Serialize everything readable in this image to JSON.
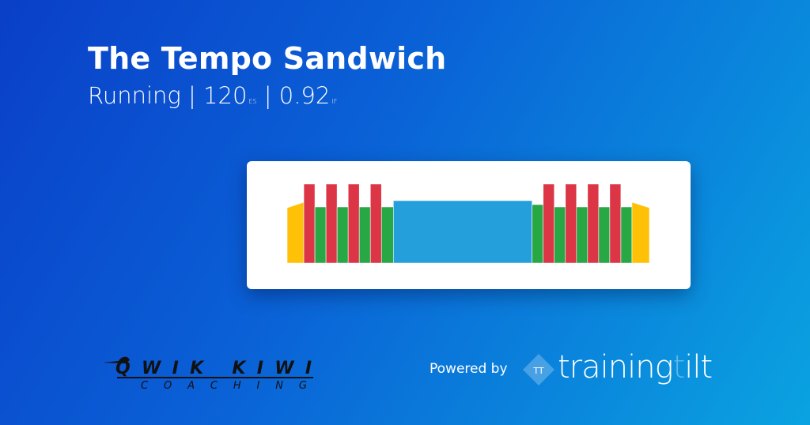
{
  "workout": {
    "title": "The Tempo Sandwich",
    "sport": "Running",
    "separator": "|",
    "es_value": "120",
    "es_unit": "ES",
    "if_value": "0.92",
    "if_unit": "IF"
  },
  "chart_data": {
    "type": "bar",
    "description_units": "relative duration and intensity",
    "colors": {
      "warmup": "#ffc107",
      "hard": "#dc3545",
      "easy": "#28a745",
      "tempo": "#259fdb"
    },
    "segments": [
      {
        "zone": "warmup",
        "duration": 21,
        "start": 70,
        "end": 77
      },
      {
        "zone": "hard",
        "duration": 14,
        "start": 100,
        "end": 100
      },
      {
        "zone": "easy",
        "duration": 14,
        "start": 71,
        "end": 71
      },
      {
        "zone": "hard",
        "duration": 14,
        "start": 100,
        "end": 100
      },
      {
        "zone": "easy",
        "duration": 14,
        "start": 71,
        "end": 71
      },
      {
        "zone": "hard",
        "duration": 14,
        "start": 100,
        "end": 100
      },
      {
        "zone": "easy",
        "duration": 14,
        "start": 71,
        "end": 71
      },
      {
        "zone": "hard",
        "duration": 14,
        "start": 100,
        "end": 100
      },
      {
        "zone": "easy",
        "duration": 15,
        "start": 71,
        "end": 71
      },
      {
        "zone": "tempo",
        "duration": 175,
        "start": 79,
        "end": 79
      },
      {
        "zone": "easy",
        "duration": 14,
        "start": 74,
        "end": 74
      },
      {
        "zone": "hard",
        "duration": 14,
        "start": 100,
        "end": 100
      },
      {
        "zone": "easy",
        "duration": 14,
        "start": 71,
        "end": 71
      },
      {
        "zone": "hard",
        "duration": 14,
        "start": 100,
        "end": 100
      },
      {
        "zone": "easy",
        "duration": 14,
        "start": 71,
        "end": 71
      },
      {
        "zone": "hard",
        "duration": 14,
        "start": 100,
        "end": 100
      },
      {
        "zone": "easy",
        "duration": 14,
        "start": 71,
        "end": 71
      },
      {
        "zone": "hard",
        "duration": 14,
        "start": 100,
        "end": 100
      },
      {
        "zone": "easy",
        "duration": 14,
        "start": 71,
        "end": 71
      },
      {
        "zone": "warmup",
        "duration": 22,
        "start": 77,
        "end": 70
      }
    ]
  },
  "footer": {
    "coach_logo_line1": "QWIK KIWI",
    "coach_logo_line2": "COACHING",
    "powered_by": "Powered by",
    "brand_icon_text": "TT",
    "brand_main": "training",
    "brand_faint": "t",
    "brand_end": "ilt"
  }
}
